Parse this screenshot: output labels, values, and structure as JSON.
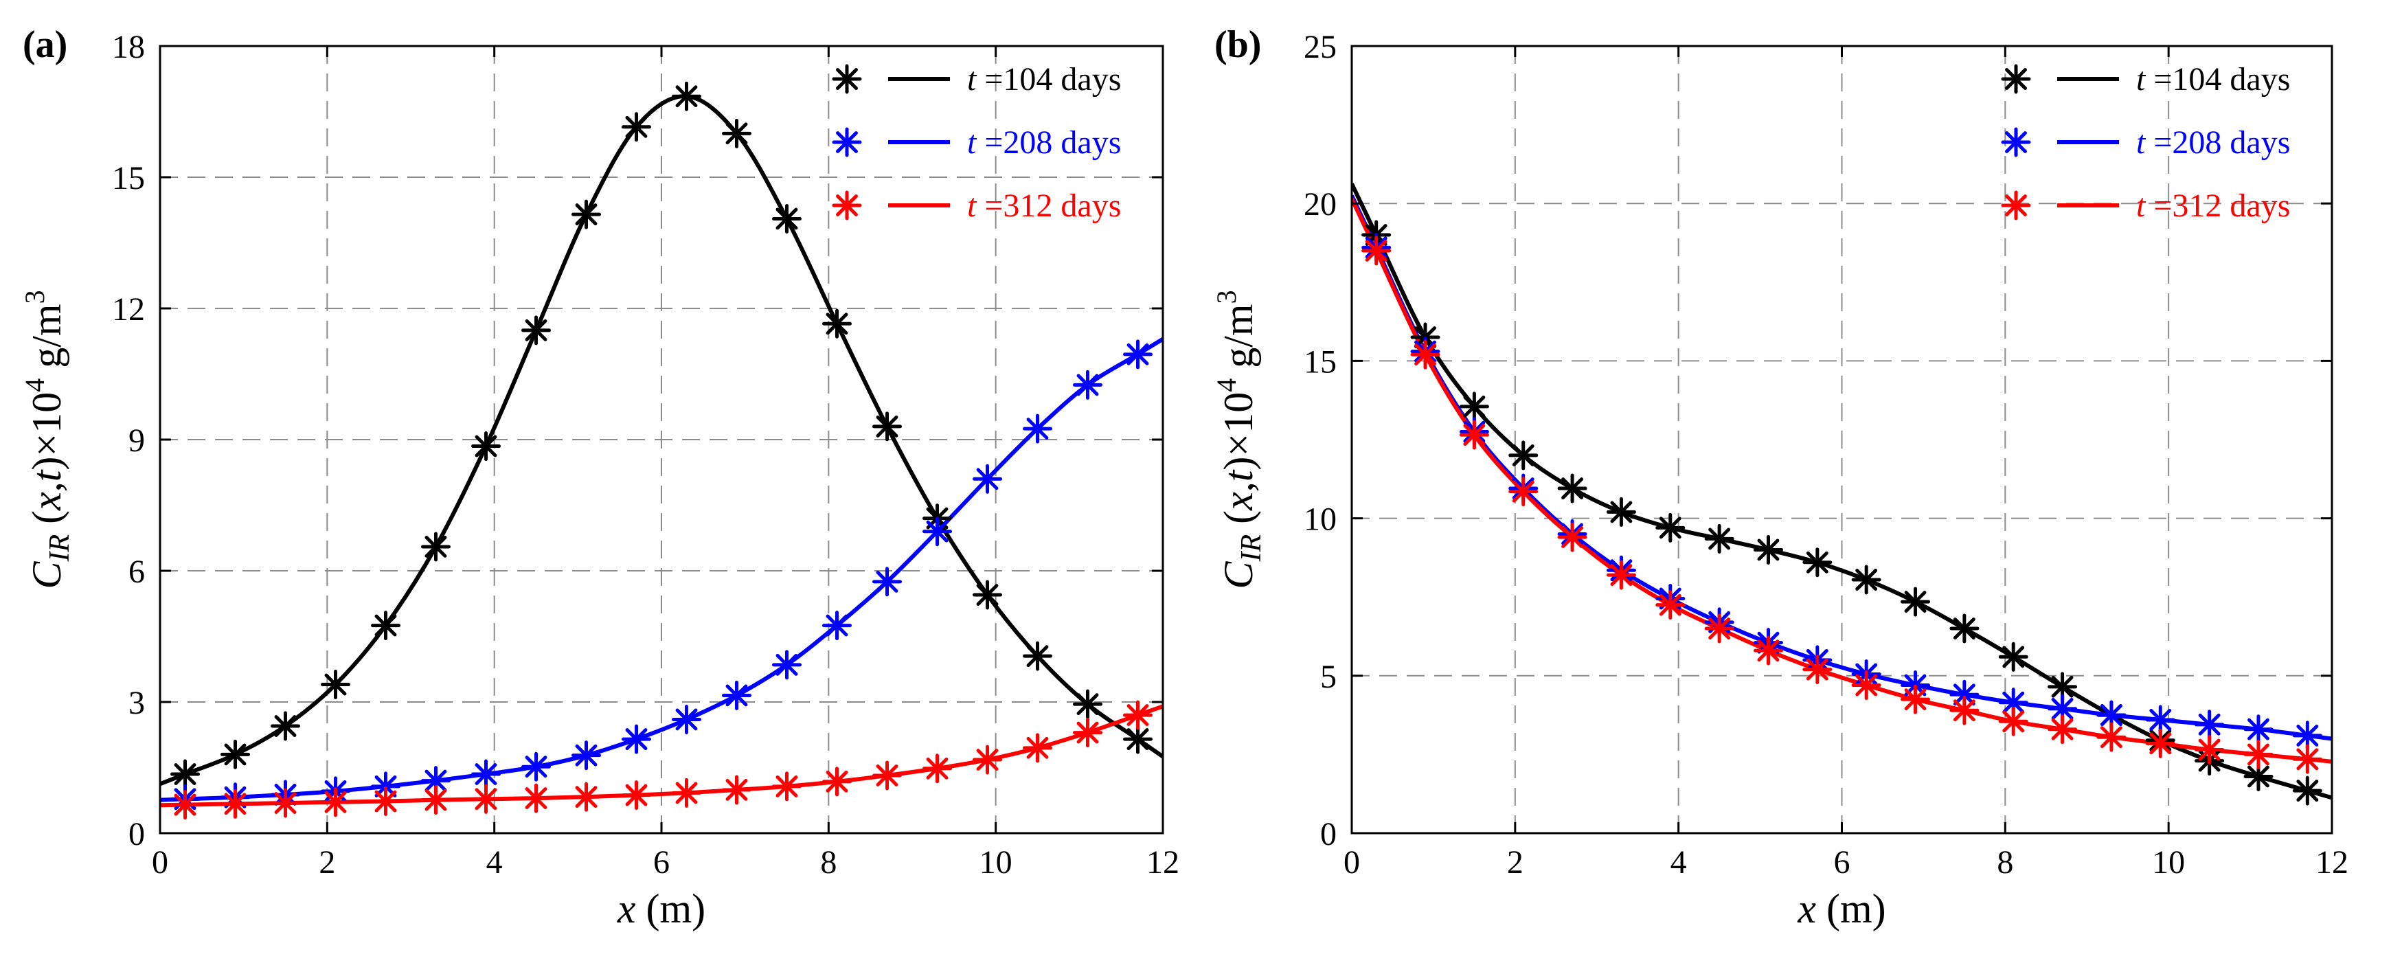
{
  "chart_data": [
    {
      "type": "line",
      "panel_label": "(a)",
      "xlabel_var": "x",
      "xlabel_unit": " (m)",
      "ylabel_var": "C",
      "ylabel_sub": "IR",
      "ylabel_mid": " (x,t)×10",
      "ylabel_exp": "4",
      "ylabel_unit": " g/m",
      "ylabel_unit_exp": "3",
      "xlim": [
        0,
        12
      ],
      "ylim": [
        0,
        18
      ],
      "xticks": [
        "0",
        "2",
        "4",
        "6",
        "8",
        "10",
        "12"
      ],
      "yticks": [
        "0",
        "3",
        "6",
        "9",
        "12",
        "15",
        "18"
      ],
      "grid": true,
      "legend_position": "top-right",
      "series": [
        {
          "name": "=104 days",
          "legend_t": "t",
          "color": "#000000",
          "x": [
            0.3,
            0.9,
            1.5,
            2.1,
            2.7,
            3.3,
            3.9,
            4.5,
            5.1,
            5.7,
            6.3,
            6.9,
            7.5,
            8.1,
            8.7,
            9.3,
            9.9,
            10.5,
            11.1,
            11.7
          ],
          "y": [
            1.35,
            1.8,
            2.45,
            3.4,
            4.75,
            6.55,
            8.85,
            11.5,
            14.15,
            16.15,
            16.85,
            16.0,
            14.05,
            11.65,
            9.3,
            7.2,
            5.45,
            4.05,
            2.95,
            2.15
          ]
        },
        {
          "name": "=208 days",
          "legend_t": "t",
          "color": "#0000ff",
          "x": [
            0.3,
            0.9,
            1.5,
            2.1,
            2.7,
            3.3,
            3.9,
            4.5,
            5.1,
            5.7,
            6.3,
            6.9,
            7.5,
            8.1,
            8.7,
            9.3,
            9.9,
            10.5,
            11.1,
            11.7
          ],
          "y": [
            0.78,
            0.82,
            0.88,
            0.96,
            1.07,
            1.2,
            1.35,
            1.52,
            1.78,
            2.15,
            2.6,
            3.15,
            3.85,
            4.75,
            5.75,
            6.9,
            8.1,
            9.25,
            10.25,
            10.95
          ]
        },
        {
          "name": "=312 days",
          "legend_t": "t",
          "color": "#ff0000",
          "x": [
            0.3,
            0.9,
            1.5,
            2.1,
            2.7,
            3.3,
            3.9,
            4.5,
            5.1,
            5.7,
            6.3,
            6.9,
            7.5,
            8.1,
            8.7,
            9.3,
            9.9,
            10.5,
            11.1,
            11.7
          ],
          "y": [
            0.65,
            0.67,
            0.69,
            0.71,
            0.73,
            0.76,
            0.78,
            0.8,
            0.83,
            0.87,
            0.92,
            0.99,
            1.07,
            1.18,
            1.32,
            1.48,
            1.68,
            1.95,
            2.3,
            2.7
          ]
        }
      ]
    },
    {
      "type": "line",
      "panel_label": "(b)",
      "xlabel_var": "x",
      "xlabel_unit": " (m)",
      "ylabel_var": "C",
      "ylabel_sub": "IR",
      "ylabel_mid": " (x,t)×10",
      "ylabel_exp": "4",
      "ylabel_unit": " g/m",
      "ylabel_unit_exp": "3",
      "xlim": [
        0,
        12
      ],
      "ylim": [
        0,
        25
      ],
      "xticks": [
        "0",
        "2",
        "4",
        "6",
        "8",
        "10",
        "12"
      ],
      "yticks": [
        "0",
        "5",
        "10",
        "15",
        "20",
        "25"
      ],
      "grid": true,
      "legend_position": "top-right",
      "series": [
        {
          "name": "=104 days",
          "legend_t": "t",
          "color": "#000000",
          "x": [
            0.3,
            0.9,
            1.5,
            2.1,
            2.7,
            3.3,
            3.9,
            4.5,
            5.1,
            5.7,
            6.3,
            6.9,
            7.5,
            8.1,
            8.7,
            9.3,
            9.9,
            10.5,
            11.1,
            11.7
          ],
          "y": [
            19.0,
            15.75,
            13.55,
            12.0,
            10.95,
            10.2,
            9.7,
            9.35,
            9.0,
            8.6,
            8.05,
            7.35,
            6.5,
            5.6,
            4.65,
            3.75,
            2.95,
            2.3,
            1.8,
            1.35
          ]
        },
        {
          "name": "=208 days",
          "legend_t": "t",
          "color": "#0000ff",
          "x": [
            0.3,
            0.9,
            1.5,
            2.1,
            2.7,
            3.3,
            3.9,
            4.5,
            5.1,
            5.7,
            6.3,
            6.9,
            7.5,
            8.1,
            8.7,
            9.3,
            9.9,
            10.5,
            11.1,
            11.7
          ],
          "y": [
            18.6,
            15.3,
            12.75,
            10.95,
            9.5,
            8.35,
            7.45,
            6.7,
            6.05,
            5.5,
            5.05,
            4.7,
            4.4,
            4.15,
            3.95,
            3.75,
            3.6,
            3.45,
            3.3,
            3.1
          ]
        },
        {
          "name": "=312 days",
          "legend_t": "t",
          "color": "#ff0000",
          "x": [
            0.3,
            0.9,
            1.5,
            2.1,
            2.7,
            3.3,
            3.9,
            4.5,
            5.1,
            5.7,
            6.3,
            6.9,
            7.5,
            8.1,
            8.7,
            9.3,
            9.9,
            10.5,
            11.1,
            11.7
          ],
          "y": [
            18.5,
            15.2,
            12.65,
            10.85,
            9.4,
            8.2,
            7.25,
            6.5,
            5.8,
            5.2,
            4.7,
            4.25,
            3.9,
            3.55,
            3.3,
            3.05,
            2.85,
            2.65,
            2.5,
            2.35
          ]
        }
      ]
    }
  ]
}
